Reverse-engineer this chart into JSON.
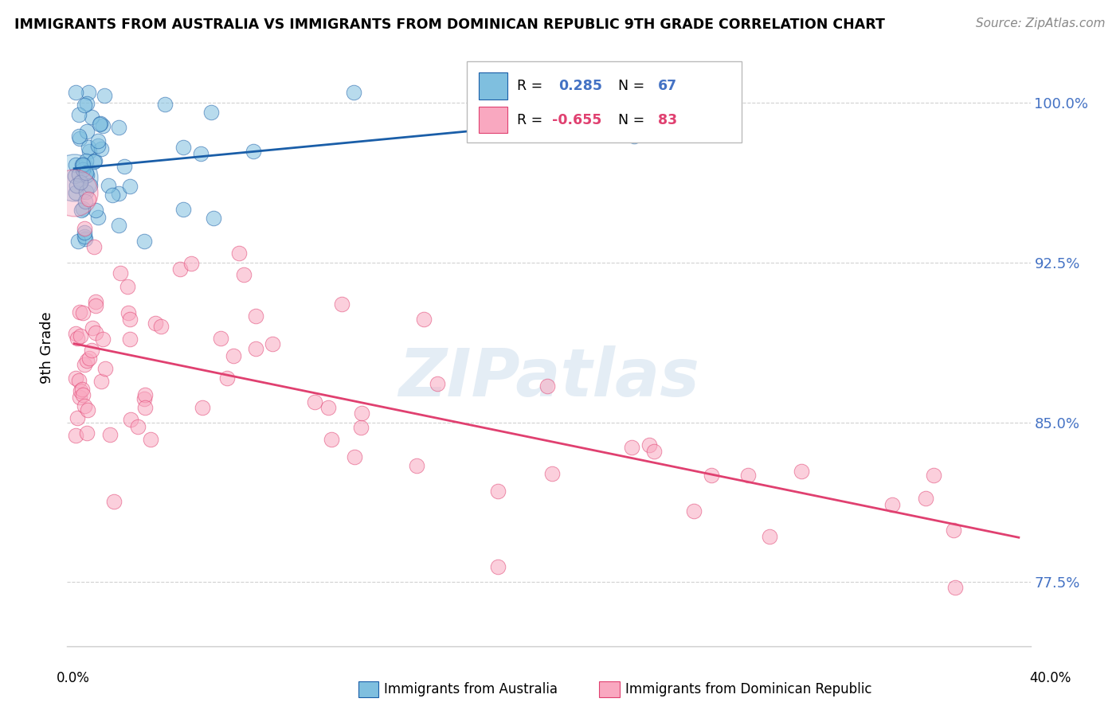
{
  "title": "IMMIGRANTS FROM AUSTRALIA VS IMMIGRANTS FROM DOMINICAN REPUBLIC 9TH GRADE CORRELATION CHART",
  "source": "Source: ZipAtlas.com",
  "ylabel": "9th Grade",
  "ylim_labels": [
    "77.5%",
    "85.0%",
    "92.5%",
    "100.0%"
  ],
  "ylim": [
    0.745,
    1.025
  ],
  "xlim": [
    -0.003,
    0.41
  ],
  "yticks": [
    0.775,
    0.85,
    0.925,
    1.0
  ],
  "xticks": [
    0.0,
    0.05,
    0.1,
    0.15,
    0.2,
    0.25,
    0.3,
    0.35,
    0.4
  ],
  "R_australia": 0.285,
  "N_australia": 67,
  "R_dominican": -0.655,
  "N_dominican": 83,
  "color_australia": "#7fbfdf",
  "color_dominican": "#f9a8c0",
  "trendline_australia": "#1a5ea8",
  "trendline_dominican": "#e04070",
  "legend_label_australia": "Immigrants from Australia",
  "legend_label_dominican": "Immigrants from Dominican Republic",
  "watermark": "ZIPatlas",
  "background_color": "#ffffff",
  "grid_color": "#cccccc",
  "right_label_color": "#4472c4"
}
